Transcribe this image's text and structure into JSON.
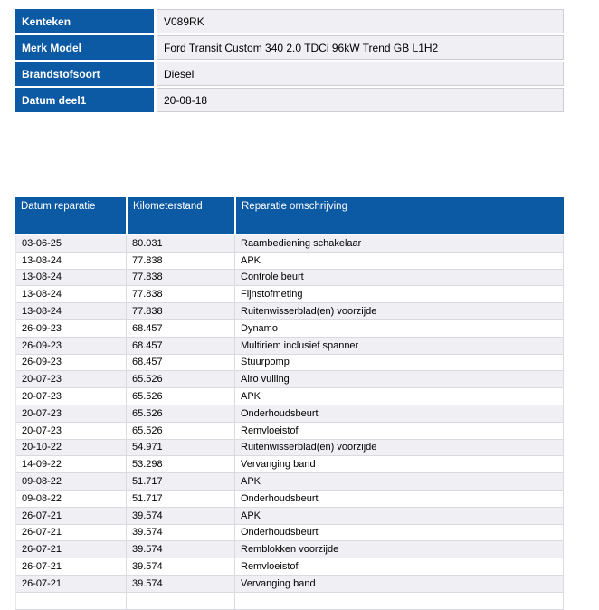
{
  "colors": {
    "header_blue": "#0C59A4",
    "row_alt_gray": "#EFEFF4",
    "row_white": "#FFFFFF",
    "cell_border": "#DADAE1",
    "label_text": "#FFFFFF",
    "body_text": "#000000"
  },
  "vehicle_info": {
    "rows": [
      {
        "label": "Kenteken",
        "value": "V089RK"
      },
      {
        "label": "Merk Model",
        "value": "Ford Transit Custom 340 2.0 TDCi 96kW Trend GB L1H2"
      },
      {
        "label": "Brandstofsoort",
        "value": "Diesel"
      },
      {
        "label": "Datum deel1",
        "value": "20-08-18"
      }
    ]
  },
  "repair_table": {
    "columns": [
      "Datum reparatie",
      "Kilometerstand",
      "Reparatie omschrijving"
    ],
    "rows": [
      [
        "03-06-25",
        "80.031",
        "Raambediening schakelaar"
      ],
      [
        "13-08-24",
        "77.838",
        "APK"
      ],
      [
        "13-08-24",
        "77.838",
        "Controle beurt"
      ],
      [
        "13-08-24",
        "77.838",
        "Fijnstofmeting"
      ],
      [
        "13-08-24",
        "77.838",
        "Ruitenwisserblad(en) voorzijde"
      ],
      [
        "26-09-23",
        "68.457",
        "Dynamo"
      ],
      [
        "26-09-23",
        "68.457",
        "Multiriem inclusief spanner"
      ],
      [
        "26-09-23",
        "68.457",
        "Stuurpomp"
      ],
      [
        "20-07-23",
        "65.526",
        "Airo vulling"
      ],
      [
        "20-07-23",
        "65.526",
        "APK"
      ],
      [
        "20-07-23",
        "65.526",
        "Onderhoudsbeurt"
      ],
      [
        "20-07-23",
        "65.526",
        "Remvloeistof"
      ],
      [
        "20-10-22",
        "54.971",
        "Ruitenwisserblad(en) voorzijde"
      ],
      [
        "14-09-22",
        "53.298",
        "Vervanging band"
      ],
      [
        "09-08-22",
        "51.717",
        "APK"
      ],
      [
        "09-08-22",
        "51.717",
        "Onderhoudsbeurt"
      ],
      [
        "26-07-21",
        "39.574",
        "APK"
      ],
      [
        "26-07-21",
        "39.574",
        "Onderhoudsbeurt"
      ],
      [
        "26-07-21",
        "39.574",
        "Remblokken voorzijde"
      ],
      [
        "26-07-21",
        "39.574",
        "Remvloeistof"
      ],
      [
        "26-07-21",
        "39.574",
        "Vervanging band"
      ],
      [
        "",
        "",
        ""
      ]
    ]
  }
}
